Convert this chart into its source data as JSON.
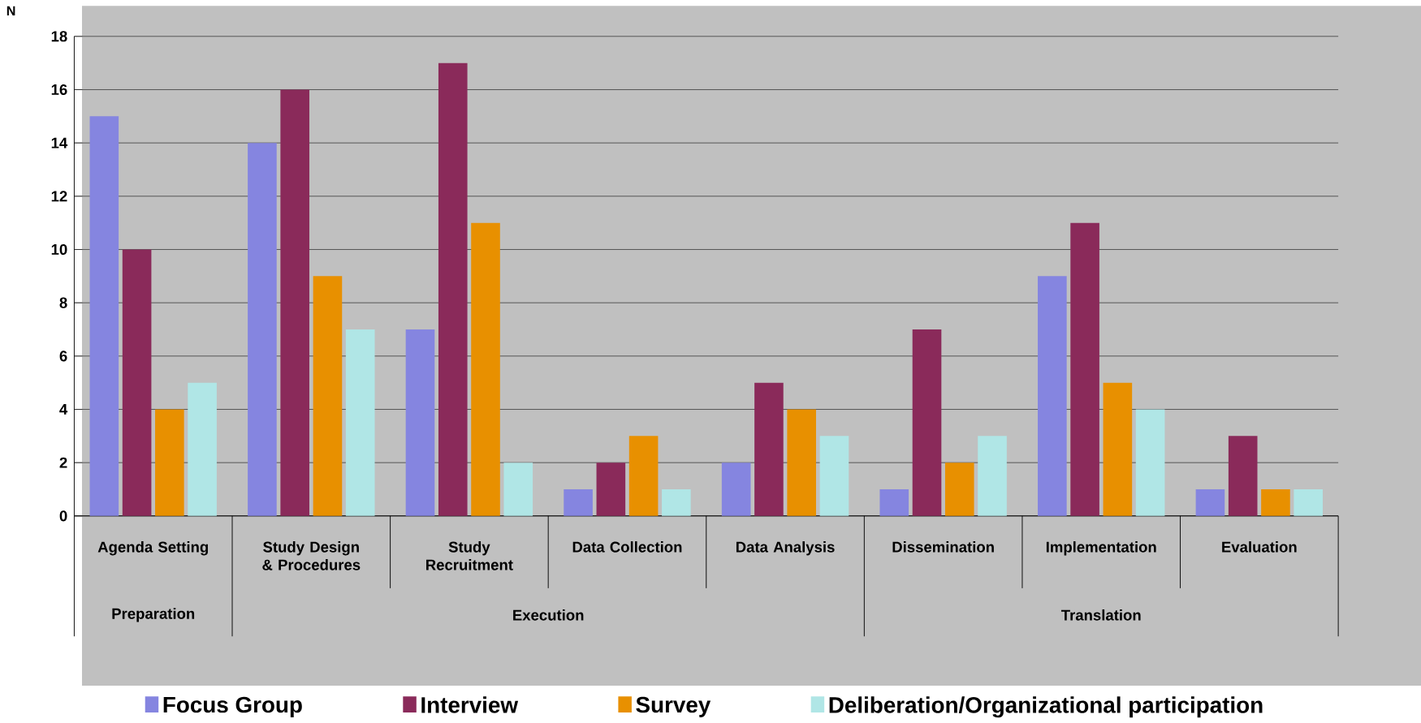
{
  "chart_data": {
    "type": "bar",
    "ylabel": "N",
    "categories": [
      "Agenda Setting",
      "Study Design & Procedures",
      "Study Recruitment",
      "Data Collection",
      "Data Analysis",
      "Dissemination",
      "Implementation",
      "Evaluation"
    ],
    "series": [
      {
        "name": "Focus Group",
        "color": "#8585e0",
        "values": [
          15,
          14,
          7,
          1,
          2,
          1,
          9,
          1
        ]
      },
      {
        "name": "Interview",
        "color": "#8a2a5a",
        "values": [
          10,
          16,
          17,
          2,
          5,
          7,
          11,
          3
        ]
      },
      {
        "name": "Survey",
        "color": "#e89000",
        "values": [
          4,
          9,
          11,
          3,
          4,
          2,
          5,
          1
        ]
      },
      {
        "name": "Deliberation/Organizational participation",
        "color": "#b0e6e6",
        "values": [
          5,
          7,
          2,
          1,
          3,
          3,
          4,
          1
        ]
      }
    ],
    "ylim": [
      0,
      18
    ],
    "yticks": [
      0,
      2,
      4,
      6,
      8,
      10,
      12,
      14,
      16,
      18
    ],
    "grid": "y",
    "legend": "bottom",
    "annotations": [
      "Preparation",
      "Execution",
      "Translation"
    ]
  }
}
